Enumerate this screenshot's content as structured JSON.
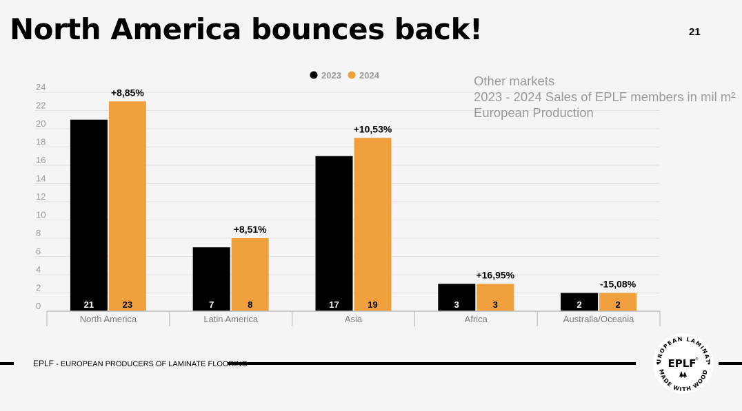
{
  "slide": {
    "title": "North America bounces back!",
    "page_number": "21"
  },
  "notes": [
    "Other markets",
    "2023 - 2024 Sales of EPLF members in mil m²",
    "European Production"
  ],
  "footer": {
    "abbr": "EPLF",
    "separator": " - ",
    "text": "EUROPEAN PRODUCERS OF LAMINATE FLOORING"
  },
  "logo": {
    "center": "EPLF",
    "mark": "®",
    "ring_top": "EUROPEAN LAMINATE",
    "ring_bottom": "MADE WITH WOOD"
  },
  "colors": {
    "series_2023": "#000000",
    "series_2024": "#f0a13d",
    "grid": "#e2e2e2",
    "tick_text": "#9a9a9a",
    "category_text": "#7a7a7a"
  },
  "chart_data": {
    "type": "bar",
    "title": "",
    "xlabel": "",
    "ylabel": "",
    "categories": [
      "North America",
      "Latin America",
      "Asia",
      "Africa",
      "Australia/Oceania"
    ],
    "series": [
      {
        "name": "2023",
        "values": [
          21,
          7,
          17,
          3,
          2
        ],
        "labels": [
          "21",
          "7",
          "17",
          "3",
          "2"
        ]
      },
      {
        "name": "2024",
        "values": [
          23,
          8,
          19,
          3,
          2
        ],
        "labels": [
          "23",
          "8",
          "19",
          "3",
          "2"
        ]
      }
    ],
    "annotations": [
      "+8,85%",
      "+8,51%",
      "+10,53%",
      "+16,95%",
      "-15,08%"
    ],
    "ylim": [
      0,
      24
    ],
    "yticks": [
      "0",
      "2",
      "4",
      "6",
      "8",
      "10",
      "12",
      "14",
      "16",
      "18",
      "20",
      "22",
      "24"
    ],
    "legend_position": "top-center",
    "grid": true
  }
}
